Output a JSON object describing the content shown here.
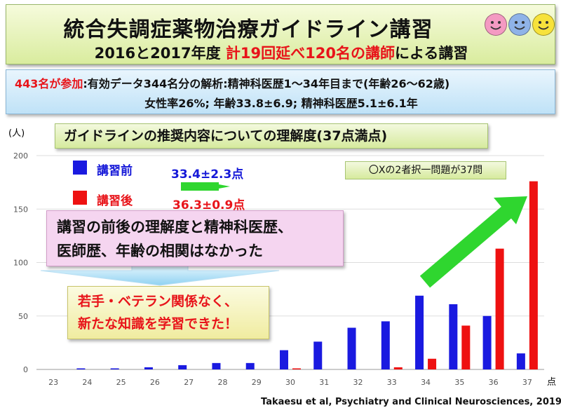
{
  "header": {
    "title": "統合失調症薬物治療ガイドライン講習",
    "subtitle_prefix": "2016と2017年度",
    "subtitle_highlight": "計19回延べ120名の講師",
    "subtitle_suffix": "による講習",
    "smiley_colors": [
      "#f49ac2",
      "#8fb3e8",
      "#f7e23b"
    ]
  },
  "summary": {
    "participants": "443名が参加",
    "line1_rest": ":有効データ344名分の解析:精神科医歴1～34年目まで(年齢26～62歳)",
    "line2": "女性率26%; 年齢33.8±6.9; 精神科医歴5.1±6.1年"
  },
  "chart_data": {
    "type": "bar",
    "title": "ガイドラインの推奨内容についての理解度(37点満点)",
    "ylabel": "(人)",
    "x_unit": "点",
    "note": "〇Xの2者択一問題が37問",
    "categories": [
      "23",
      "24",
      "25",
      "26",
      "27",
      "28",
      "29",
      "30",
      "31",
      "32",
      "33",
      "34",
      "35",
      "36",
      "37"
    ],
    "ylim": [
      0,
      200
    ],
    "yticks": [
      0,
      50,
      100,
      150,
      200
    ],
    "series": [
      {
        "name": "講習前",
        "color": "#1a1ae0",
        "values": [
          0,
          1,
          1,
          2,
          4,
          6,
          6,
          18,
          26,
          39,
          45,
          69,
          61,
          50,
          15
        ]
      },
      {
        "name": "講習後",
        "color": "#ee1111",
        "values": [
          0,
          0,
          0,
          0,
          0,
          0,
          0,
          1,
          0,
          0,
          2,
          10,
          41,
          113,
          176
        ]
      }
    ],
    "scores": {
      "before": "33.4±2.3点",
      "after": "36.3±0.9点"
    }
  },
  "callouts": {
    "correlation_lines": [
      "講習の前後の理解度と精神科医歴、",
      "医師歴、年齢の相関はなかった"
    ],
    "conclusion_lines": [
      "若手・ベテラン関係なく、",
      "新たな知識を学習できた！"
    ]
  },
  "citation": "Takaesu et al, Psychiatry and Clinical Neurosciences, 2019"
}
